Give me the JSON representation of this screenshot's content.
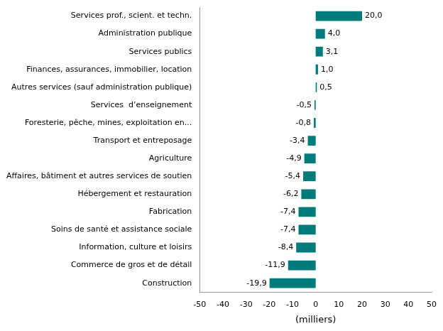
{
  "chart_data": {
    "type": "bar",
    "orientation": "horizontal",
    "categories": [
      "Construction",
      "Commerce de gros et de détail",
      "Information, culture et loisirs",
      "Soins de santé et assistance sociale",
      "Fabrication",
      "Hébergement et restauration",
      "Affaires, bâtiment et autres services de soutien",
      "Agriculture",
      "Transport et entreposage",
      "Foresterie, pêche, mines, exploitation en...",
      "Services  d’enseignement",
      "Autres services (sauf administration publique)",
      "Finances, assurances, immobilier, location",
      "Services publics",
      "Administration publique",
      "Services prof., scient. et techn."
    ],
    "values": [
      -19.9,
      -11.9,
      -8.4,
      -7.4,
      -7.4,
      -6.2,
      -5.4,
      -4.9,
      -3.4,
      -0.8,
      -0.5,
      0.5,
      1.0,
      3.1,
      4.0,
      20.0
    ],
    "value_labels": [
      "-19,9",
      "-11,9",
      "-8,4",
      "-7,4",
      "-7,4",
      "-6,2",
      "-5,4",
      "-4,9",
      "-3,4",
      "-0,8",
      "-0,5",
      "0,5",
      "1,0",
      "3,1",
      "4,0",
      "20,0"
    ],
    "color": "#007b7b",
    "xlabel": "(milliers)",
    "xlim": [
      -50,
      50
    ],
    "xticks": [
      -50,
      -40,
      -30,
      -20,
      -10,
      0,
      10,
      20,
      30,
      40,
      50
    ],
    "grid": false,
    "data_labels": true
  }
}
